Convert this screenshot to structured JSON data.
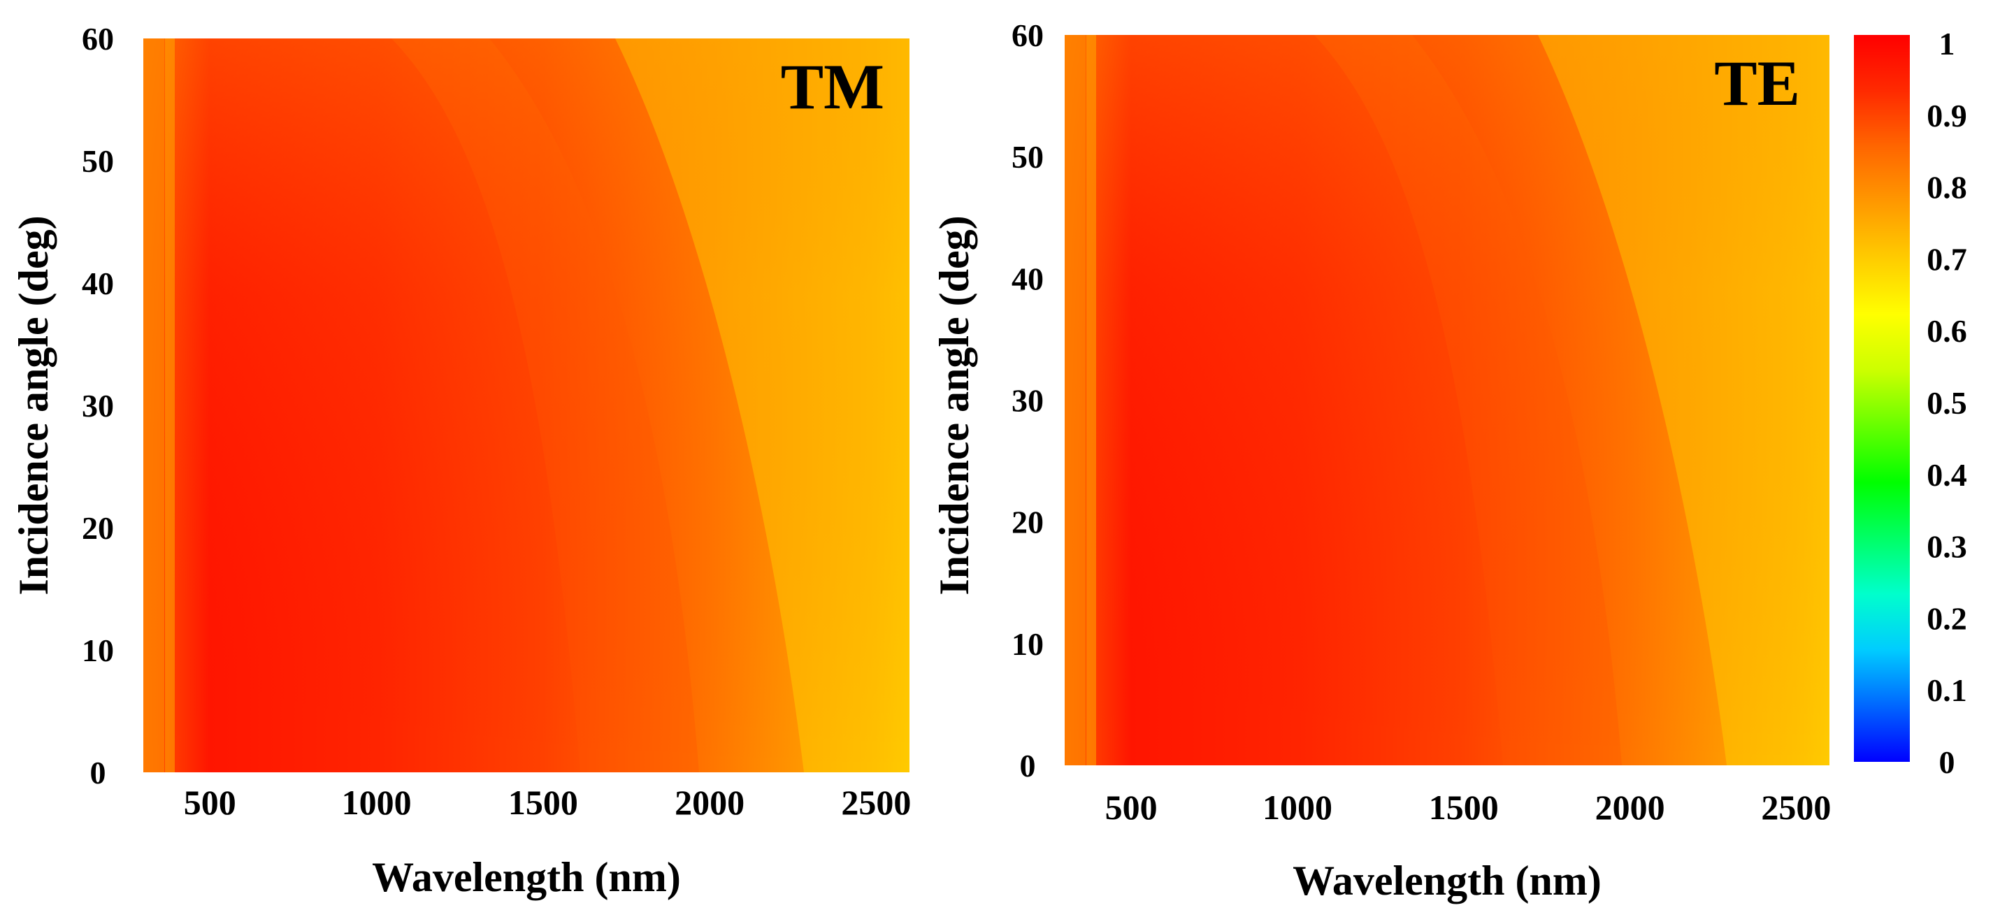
{
  "chart_data": [
    {
      "type": "heatmap",
      "panel_label": "TM",
      "xlabel": "Wavelength (nm)",
      "ylabel": "Incidence angle (deg)",
      "xlim": [
        300,
        2600
      ],
      "ylim": [
        0,
        60
      ],
      "x_ticks": [
        "500",
        "1000",
        "1500",
        "2000",
        "2500"
      ],
      "y_ticks": [
        "0",
        "10",
        "20",
        "30",
        "40",
        "50",
        "60"
      ],
      "zlim": [
        0,
        1
      ],
      "description_values": {
        "wavelength_nm": [
          300,
          500,
          1000,
          1500,
          2000,
          2500,
          2600
        ],
        "absorptance_at_0deg": [
          0.85,
          0.97,
          0.97,
          0.93,
          0.84,
          0.74,
          0.71
        ],
        "absorptance_at_60deg": [
          0.88,
          0.95,
          0.88,
          0.84,
          0.8,
          0.72,
          0.68
        ]
      }
    },
    {
      "type": "heatmap",
      "panel_label": "TE",
      "xlabel": "Wavelength (nm)",
      "ylabel": "Incidence angle (deg)",
      "xlim": [
        300,
        2600
      ],
      "ylim": [
        0,
        60
      ],
      "x_ticks": [
        "500",
        "1000",
        "1500",
        "2000",
        "2500"
      ],
      "y_ticks": [
        "0",
        "10",
        "20",
        "30",
        "40",
        "50",
        "60"
      ],
      "zlim": [
        0,
        1
      ],
      "description_values": {
        "wavelength_nm": [
          300,
          500,
          1000,
          1500,
          2000,
          2500,
          2600
        ],
        "absorptance_at_0deg": [
          0.85,
          0.97,
          0.97,
          0.93,
          0.84,
          0.74,
          0.71
        ],
        "absorptance_at_60deg": [
          0.88,
          0.95,
          0.88,
          0.84,
          0.8,
          0.72,
          0.68
        ]
      }
    }
  ],
  "colorbar": {
    "ticks": [
      "0",
      "0.1",
      "0.2",
      "0.3",
      "0.4",
      "0.5",
      "0.6",
      "0.7",
      "0.8",
      "0.9",
      "1"
    ],
    "stops": [
      "#0000ff",
      "#0066ff",
      "#00ccff",
      "#00ffcc",
      "#00ff66",
      "#00ff00",
      "#66ff00",
      "#ccff00",
      "#ffff00",
      "#ffcc00",
      "#ff9900",
      "#ff6600",
      "#ff2a00",
      "#ff0000"
    ]
  }
}
